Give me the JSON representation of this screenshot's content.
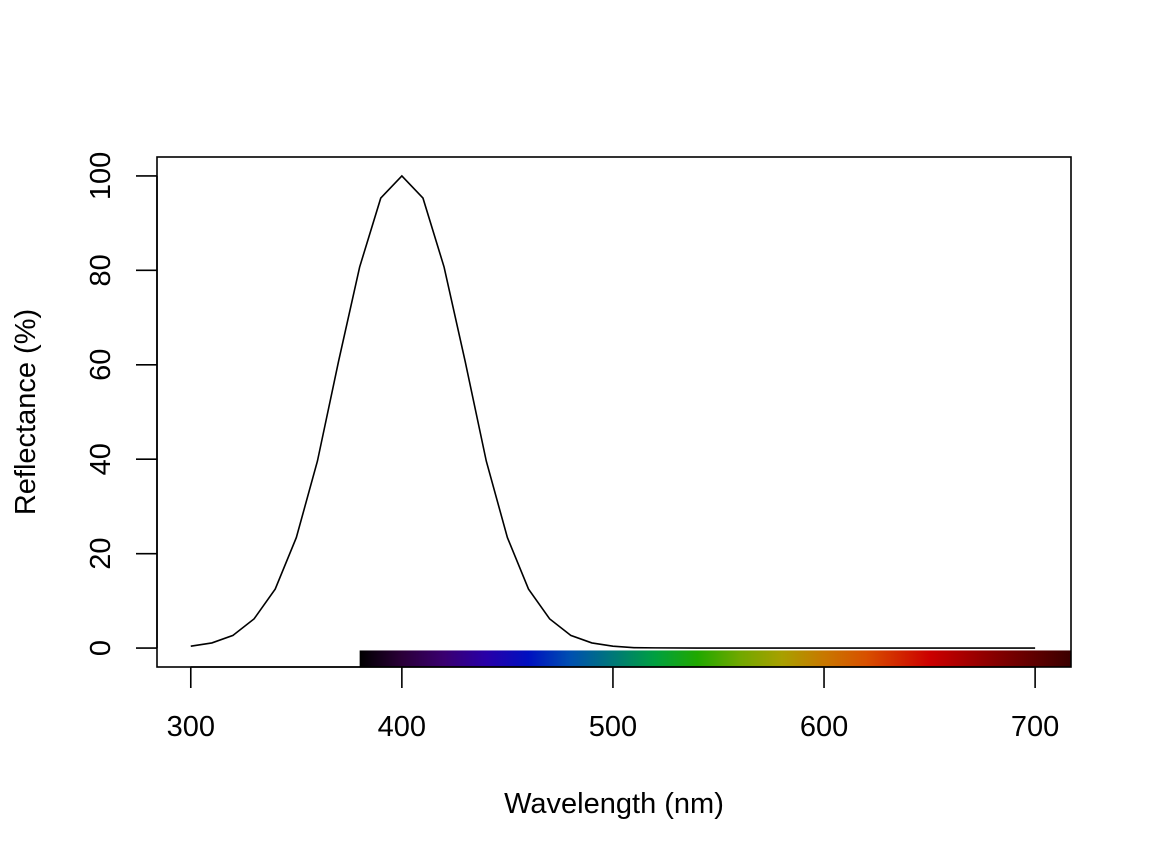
{
  "chart_data": {
    "type": "line",
    "xlabel": "Wavelength (nm)",
    "ylabel": "Reflectance (%)",
    "xlim": [
      284,
      717
    ],
    "ylim": [
      -4,
      104
    ],
    "x_ticks": [
      300,
      400,
      500,
      600,
      700
    ],
    "x_tick_labels": [
      "300",
      "400",
      "500",
      "600",
      "700"
    ],
    "y_ticks": [
      0,
      20,
      40,
      60,
      80,
      100
    ],
    "y_tick_labels": [
      "0",
      "20",
      "40",
      "60",
      "80",
      "100"
    ],
    "grid": false,
    "series": [
      {
        "x": [
          300,
          310,
          320,
          330,
          340,
          350,
          360,
          370,
          380,
          390,
          400,
          410,
          420,
          430,
          440,
          450,
          460,
          470,
          480,
          490,
          500,
          510,
          520,
          540,
          560,
          600,
          650,
          700
        ],
        "y": [
          0.4,
          1.1,
          2.7,
          6.2,
          12.5,
          23.4,
          39.6,
          60.7,
          80.7,
          95.3,
          100.0,
          95.3,
          80.7,
          60.7,
          39.6,
          23.4,
          12.5,
          6.2,
          2.7,
          1.1,
          0.4,
          0.1,
          0.05,
          0.0,
          0.0,
          0.0,
          0.0,
          0.0
        ],
        "color": "#000000"
      }
    ],
    "spectrum_bar": {
      "x_range": [
        380,
        717
      ],
      "y_range": [
        -4,
        -0.5
      ],
      "color_stops": [
        {
          "x": 380,
          "color": "#000000"
        },
        {
          "x": 400,
          "color": "#2a0038"
        },
        {
          "x": 420,
          "color": "#3a0070"
        },
        {
          "x": 440,
          "color": "#2800a8"
        },
        {
          "x": 460,
          "color": "#0010c0"
        },
        {
          "x": 480,
          "color": "#0050b0"
        },
        {
          "x": 500,
          "color": "#007878"
        },
        {
          "x": 520,
          "color": "#00a040"
        },
        {
          "x": 540,
          "color": "#20a800"
        },
        {
          "x": 560,
          "color": "#70a800"
        },
        {
          "x": 580,
          "color": "#a8a000"
        },
        {
          "x": 600,
          "color": "#c87800"
        },
        {
          "x": 620,
          "color": "#d85000"
        },
        {
          "x": 650,
          "color": "#cc0000"
        },
        {
          "x": 680,
          "color": "#880000"
        },
        {
          "x": 717,
          "color": "#3a0000"
        }
      ]
    }
  }
}
